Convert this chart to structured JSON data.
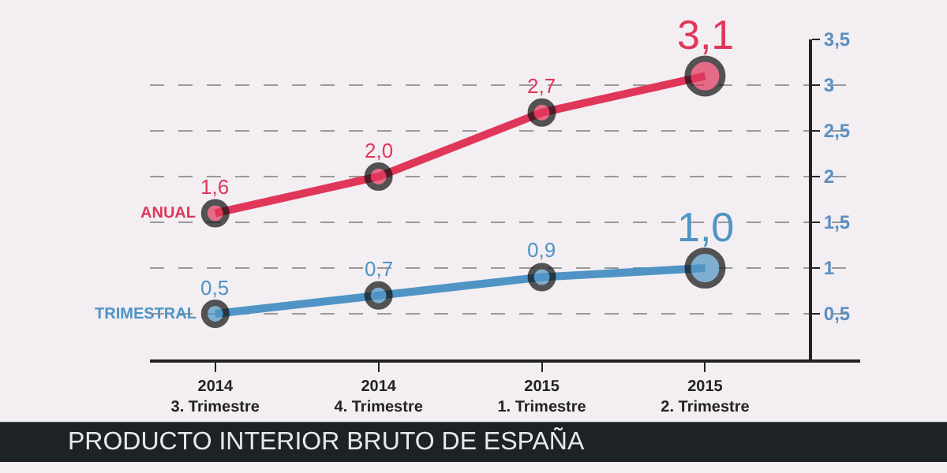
{
  "chart_data": {
    "type": "line",
    "title": "PRODUCTO INTERIOR BRUTO DE ESPAÑA",
    "categories": [
      "2014\n3. Trimestre",
      "2014\n4. Trimestre",
      "2015\n1. Trimestre",
      "2015\n2. Trimestre"
    ],
    "series": [
      {
        "name": "ANUAL",
        "color": "#e0365a",
        "values": [
          1.6,
          2.0,
          2.7,
          3.1
        ],
        "value_labels": [
          "1,6",
          "2,0",
          "2,7",
          "3,1"
        ]
      },
      {
        "name": "TRIMESTRAL",
        "color": "#4f94c4",
        "values": [
          0.5,
          0.7,
          0.9,
          1.0
        ],
        "value_labels": [
          "0,5",
          "0,7",
          "0,9",
          "1,0"
        ]
      }
    ],
    "ylim": [
      0,
      3.5
    ],
    "yticks": [
      {
        "value": 0.5,
        "label": "0,5"
      },
      1,
      {
        "value": 1.5,
        "label": "1,5"
      },
      2,
      {
        "value": 2.5,
        "label": "2,5"
      },
      3,
      {
        "value": 3.5,
        "label": "3,5"
      }
    ],
    "grid": "y",
    "legend": false,
    "marker": "circle",
    "line_style": "solid"
  }
}
